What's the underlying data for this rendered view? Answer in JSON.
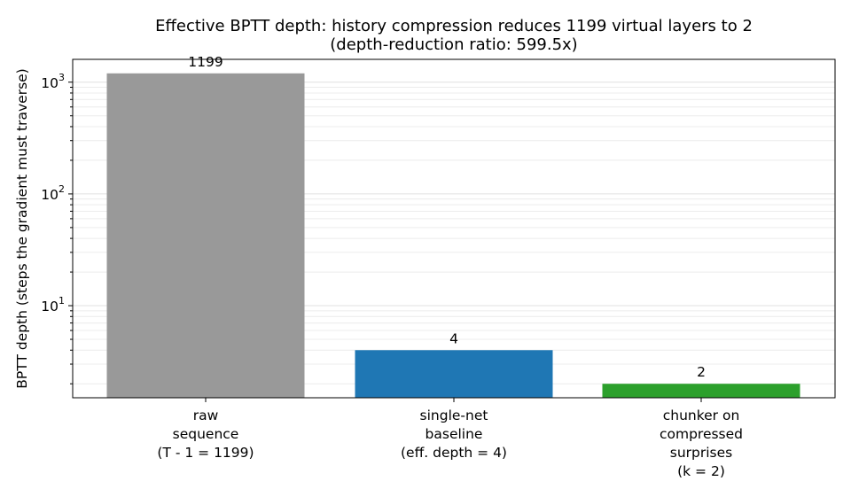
{
  "chart_data": {
    "type": "bar",
    "title": [
      "Effective BPTT depth: history compression reduces 1199 virtual layers to 2",
      "(depth-reduction ratio: 599.5x)"
    ],
    "xlabel": "",
    "ylabel": "BPTT depth (steps the gradient must traverse)",
    "yscale": "log",
    "ylim": [
      1.5,
      1600
    ],
    "yticks": [
      {
        "value": 10,
        "base": "10",
        "exp": "1"
      },
      {
        "value": 100,
        "base": "10",
        "exp": "2"
      },
      {
        "value": 1000,
        "base": "10",
        "exp": "3"
      }
    ],
    "grid": "y (major and minor)",
    "categories": [
      [
        "raw",
        "sequence",
        "(T - 1 = 1199)"
      ],
      [
        "single-net",
        "baseline",
        "(eff. depth = 4)"
      ],
      [
        "chunker on",
        "compressed",
        "surprises",
        "(k = 2)"
      ]
    ],
    "values": [
      1199,
      4,
      2
    ],
    "bar_labels": [
      "1199",
      "4",
      "2"
    ],
    "colors": [
      "#999999",
      "#1f77b4",
      "#2ca02c"
    ]
  }
}
